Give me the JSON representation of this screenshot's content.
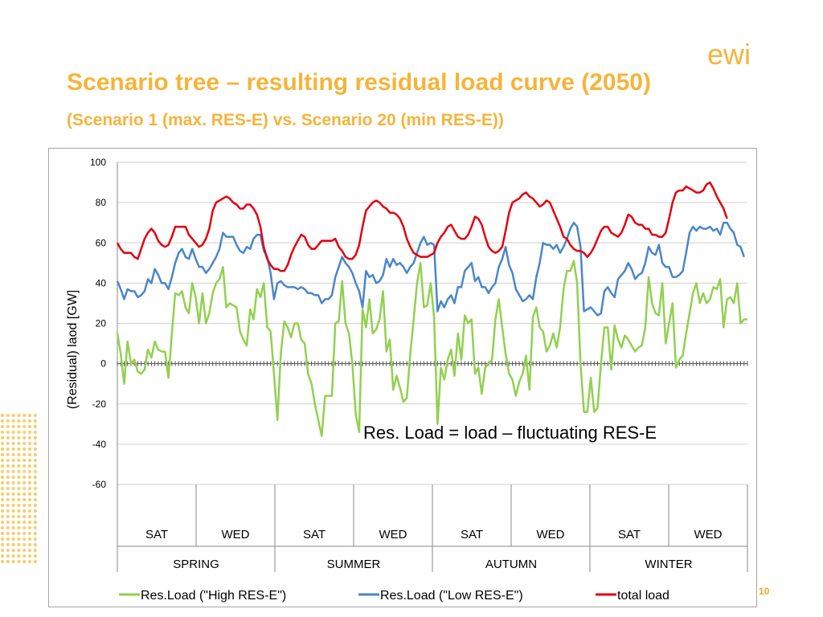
{
  "slide": {
    "title": "Scenario tree – resulting residual load curve (2050)",
    "subtitle": "(Scenario 1 (max. RES-E) vs. Scenario 20 (min RES-E))",
    "page_number": "10",
    "logo_text": "ewi"
  },
  "colors": {
    "title": "#f5b43a",
    "green": "#92d050",
    "blue": "#4a86c8",
    "red": "#e3000f",
    "dots": "#f7cc6a"
  },
  "chart_data": {
    "type": "line",
    "title": "",
    "xlabel": "",
    "ylabel": "(Residual) laod  [GW]",
    "ylim": [
      -60,
      100
    ],
    "yticks": [
      "100",
      "80",
      "60",
      "40",
      "20",
      "0",
      "-20",
      "-40",
      "-60"
    ],
    "grid": "horizontal",
    "annotation": "Res. Load = load – fluctuating RES-E",
    "day_labels": [
      "SAT",
      "WED",
      "SAT",
      "WED",
      "SAT",
      "WED",
      "SAT",
      "WED"
    ],
    "season_labels": [
      "SPRING",
      "SUMMER",
      "AUTUMN",
      "WINTER"
    ],
    "legend_position": "bottom",
    "series": [
      {
        "name": "Res.Load (\"High RES-E\")",
        "color_key": "green",
        "values": [
          15,
          5,
          -10,
          11,
          0,
          2,
          -4,
          -5,
          -3,
          7,
          3,
          11,
          7,
          6,
          6,
          -7,
          15,
          35,
          34,
          36,
          28,
          25,
          40,
          33,
          20,
          35,
          20,
          25,
          35,
          40,
          42,
          48,
          28,
          30,
          29,
          28,
          16,
          12,
          9,
          27,
          22,
          37,
          33,
          40,
          18,
          16,
          -5,
          -28,
          5,
          21,
          18,
          13,
          20,
          20,
          12,
          10,
          -5,
          -10,
          -20,
          -28,
          -36,
          -16,
          -16,
          -16,
          20,
          21,
          41,
          20,
          15,
          0,
          -25,
          -34,
          27,
          18,
          32,
          15,
          17,
          22,
          36,
          6,
          12,
          -13,
          -6,
          -12,
          -19,
          -17,
          5,
          22,
          40,
          50,
          28,
          29,
          40,
          23,
          -30,
          -2,
          -8,
          2,
          7,
          -6,
          15,
          2,
          24,
          20,
          22,
          -5,
          -2,
          -15,
          -2,
          0,
          2,
          22,
          32,
          18,
          5,
          -5,
          -8,
          -16,
          -9,
          -5,
          4,
          -13,
          23,
          28,
          18,
          16,
          6,
          9,
          15,
          8,
          18,
          37,
          46,
          46,
          51,
          40,
          0,
          -24,
          -24,
          -7,
          -24,
          -22,
          0,
          18,
          18,
          -3,
          19,
          12,
          8,
          14,
          12,
          9,
          6,
          8,
          9,
          18,
          43,
          30,
          25,
          24,
          40,
          10,
          20,
          30,
          -2,
          2,
          4,
          15,
          25,
          35,
          40,
          30,
          35,
          30,
          32,
          38,
          37,
          42,
          18,
          32,
          33,
          30,
          40,
          20,
          22,
          22
        ]
      },
      {
        "name": "Res.Load (\"Low RES-E\")",
        "color_key": "blue",
        "values": [
          41,
          37,
          32,
          37,
          36,
          36,
          33,
          34,
          36,
          42,
          40,
          47,
          44,
          40,
          40,
          37,
          43,
          50,
          55,
          57,
          53,
          52,
          57,
          52,
          48,
          48,
          45,
          47,
          50,
          53,
          57,
          65,
          63,
          63,
          63,
          59,
          56,
          55,
          58,
          57,
          62,
          64,
          64,
          56,
          53,
          45,
          32,
          40,
          41,
          39,
          38,
          38,
          38,
          37,
          38,
          37,
          35,
          35,
          34,
          34,
          30,
          32,
          32,
          34,
          43,
          48,
          53,
          50,
          48,
          45,
          40,
          36,
          28,
          46,
          43,
          44,
          40,
          41,
          44,
          52,
          48,
          52,
          49,
          50,
          48,
          45,
          48,
          50,
          55,
          60,
          63,
          59,
          60,
          59,
          26,
          31,
          28,
          32,
          34,
          30,
          38,
          38,
          46,
          48,
          50,
          41,
          43,
          38,
          38,
          35,
          38,
          40,
          48,
          52,
          58,
          49,
          45,
          37,
          34,
          31,
          32,
          34,
          32,
          43,
          50,
          60,
          59,
          59,
          57,
          59,
          55,
          58,
          62,
          67,
          70,
          68,
          58,
          26,
          27,
          28,
          26,
          24,
          25,
          36,
          38,
          35,
          33,
          42,
          44,
          46,
          50,
          47,
          42,
          44,
          45,
          50,
          58,
          55,
          54,
          59,
          50,
          48,
          48,
          43,
          43,
          44,
          46,
          55,
          65,
          68,
          66,
          68,
          67,
          67,
          68,
          66,
          67,
          64,
          70,
          70,
          67,
          65,
          59,
          58,
          53
        ]
      },
      {
        "name": "total load",
        "color_key": "red",
        "values": [
          60,
          57,
          55,
          55,
          55,
          53,
          52,
          57,
          62,
          65,
          67,
          65,
          61,
          59,
          58,
          59,
          63,
          68,
          68,
          68,
          68,
          64,
          62,
          60,
          58,
          59,
          62,
          67,
          76,
          80,
          81,
          82,
          83,
          82,
          80,
          79,
          77,
          77,
          79,
          79,
          77,
          74,
          68,
          58,
          52,
          49,
          47,
          47,
          46,
          46,
          49,
          54,
          58,
          61,
          64,
          63,
          59,
          57,
          57,
          59,
          61,
          61,
          61,
          61,
          62,
          58,
          56,
          53,
          52,
          52,
          54,
          59,
          68,
          76,
          78,
          80,
          81,
          80,
          78,
          77,
          75,
          75,
          74,
          72,
          68,
          62,
          58,
          55,
          54,
          53,
          53,
          53,
          54,
          55,
          60,
          63,
          65,
          68,
          69,
          66,
          63,
          62,
          62,
          64,
          68,
          73,
          72,
          69,
          63,
          58,
          56,
          55,
          56,
          58,
          66,
          75,
          80,
          81,
          82,
          84,
          85,
          83,
          82,
          80,
          78,
          79,
          81,
          80,
          76,
          72,
          68,
          63,
          62,
          59,
          57,
          56,
          56,
          55,
          53,
          55,
          58,
          62,
          66,
          68,
          68,
          65,
          64,
          63,
          65,
          69,
          74,
          73,
          70,
          69,
          69,
          67,
          67,
          64,
          64,
          63,
          63,
          65,
          72,
          80,
          85,
          86,
          86,
          88,
          87,
          86,
          85,
          85,
          86,
          89,
          90,
          87,
          83,
          80,
          77,
          72
        ]
      }
    ]
  }
}
